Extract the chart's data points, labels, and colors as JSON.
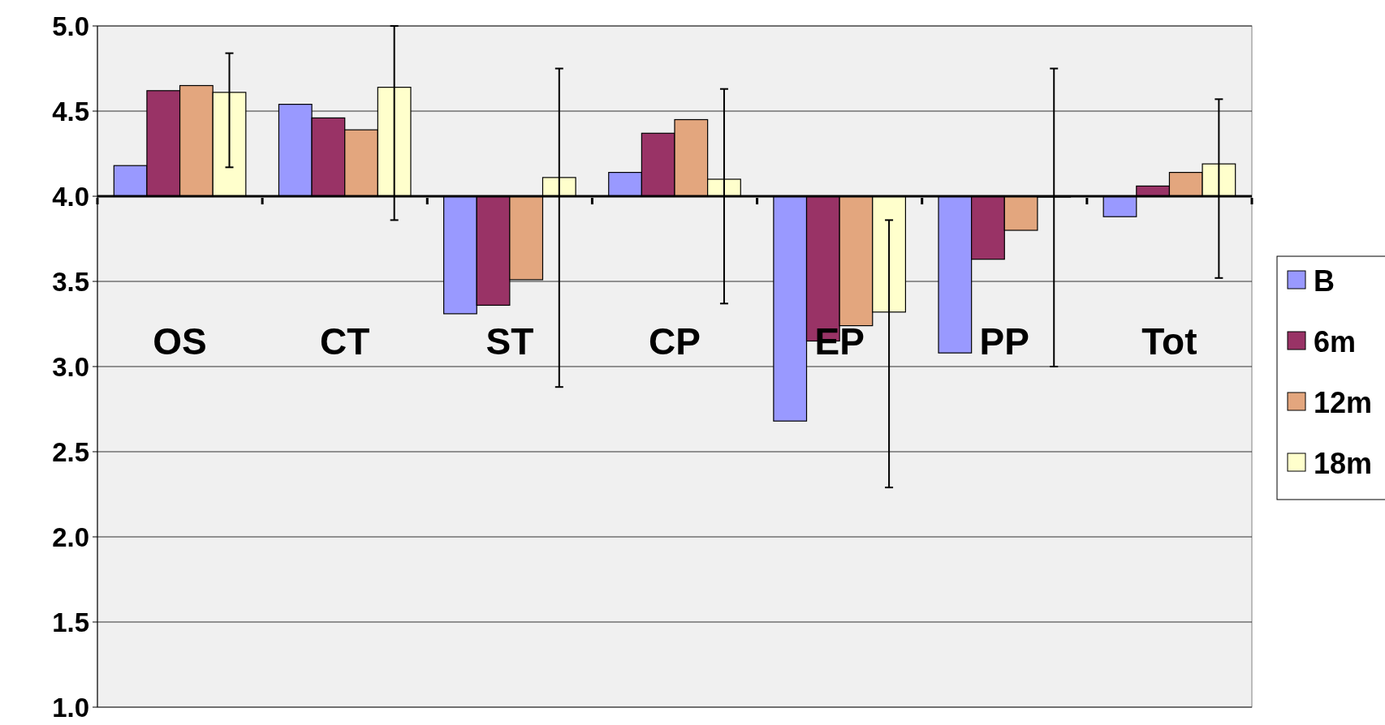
{
  "chart_data": {
    "type": "bar",
    "categories": [
      "OS",
      "CT",
      "ST",
      "CP",
      "EP",
      "PP",
      "Tot"
    ],
    "series": [
      {
        "name": "B",
        "color": "#9999ff",
        "base": [
          4,
          4,
          4,
          4,
          4,
          4,
          4
        ],
        "values": [
          0.18,
          0.54,
          -0.69,
          0.14,
          -1.32,
          -0.92,
          -0.12
        ]
      },
      {
        "name": "6m",
        "color": "#993366",
        "base": [
          4,
          4,
          4,
          4,
          4,
          4,
          4
        ],
        "values": [
          0.62,
          0.46,
          -0.64,
          0.37,
          -0.85,
          -0.37,
          0.06
        ]
      },
      {
        "name": "12m",
        "color": "#e3a67e",
        "base": [
          4,
          4,
          4,
          4,
          4,
          4,
          4
        ],
        "values": [
          0.65,
          0.39,
          -0.49,
          0.45,
          -0.76,
          -0.2,
          0.14
        ]
      },
      {
        "name": "18m",
        "color": "#ffffcc",
        "base": [
          4,
          4,
          4,
          4,
          4,
          4,
          4
        ],
        "values": [
          0.61,
          0.64,
          0.11,
          0.1,
          -0.68,
          0,
          0.19
        ],
        "errors": [
          [
            4.17,
            4.84
          ],
          [
            3.86,
            5.0
          ],
          [
            2.88,
            4.75
          ],
          [
            3.37,
            4.63
          ],
          [
            2.29,
            3.86
          ],
          [
            3.0,
            4.75
          ],
          [
            3.52,
            4.57
          ]
        ]
      }
    ],
    "ylim": [
      1,
      5
    ],
    "yticks": [
      {
        "value": 1,
        "label": "1.0"
      },
      {
        "value": 1.5,
        "label": "1.5"
      },
      {
        "value": 2,
        "label": "2.0"
      },
      {
        "value": 2.5,
        "label": "2.5"
      },
      {
        "value": 3,
        "label": "3.0"
      },
      {
        "value": 3.5,
        "label": "3.5"
      },
      {
        "value": 4,
        "label": "4.0"
      },
      {
        "value": 4.5,
        "label": "4.5"
      },
      {
        "value": 5,
        "label": "5.0"
      }
    ],
    "ref_lines": [
      {
        "axis": "y",
        "value": 4
      }
    ],
    "grid": "y",
    "legend": "right"
  }
}
